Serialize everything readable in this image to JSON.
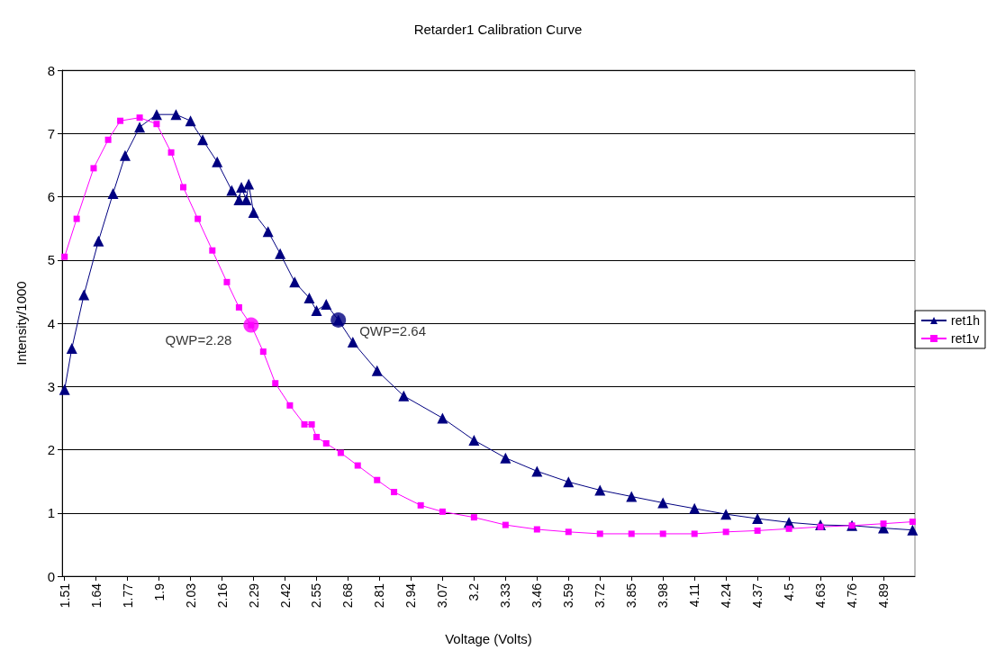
{
  "chart_data": {
    "type": "line",
    "title": "Retarder1 Calibration Curve",
    "xlabel": "Voltage (Volts)",
    "ylabel": "Intensity/1000",
    "xlim": [
      1.5,
      5.02
    ],
    "xticks": [
      1.51,
      1.64,
      1.77,
      1.9,
      2.03,
      2.16,
      2.29,
      2.42,
      2.55,
      2.68,
      2.81,
      2.94,
      3.07,
      3.2,
      3.33,
      3.46,
      3.59,
      3.72,
      3.85,
      3.98,
      4.11,
      4.24,
      4.37,
      4.5,
      4.63,
      4.76,
      4.89
    ],
    "ylim": [
      0,
      8
    ],
    "yticks": [
      0,
      1,
      2,
      3,
      4,
      5,
      6,
      7,
      8
    ],
    "grid": "y",
    "legend": "right",
    "series": [
      {
        "name": "ret1h",
        "color": "#000080",
        "marker": "triangle",
        "x": [
          1.51,
          1.54,
          1.59,
          1.65,
          1.71,
          1.76,
          1.82,
          1.89,
          1.97,
          2.03,
          2.08,
          2.14,
          2.2,
          2.23,
          2.24,
          2.26,
          2.27,
          2.29,
          2.35,
          2.4,
          2.46,
          2.52,
          2.55,
          2.59,
          2.64,
          2.7,
          2.8,
          2.91,
          3.07,
          3.2,
          3.33,
          3.46,
          3.59,
          3.72,
          3.85,
          3.98,
          4.11,
          4.24,
          4.37,
          4.5,
          4.63,
          4.76,
          4.89,
          5.01
        ],
        "values": [
          2.95,
          3.6,
          4.45,
          5.3,
          6.05,
          6.65,
          7.1,
          7.3,
          7.3,
          7.2,
          6.9,
          6.55,
          6.1,
          5.95,
          6.15,
          5.95,
          6.2,
          5.75,
          5.45,
          5.1,
          4.65,
          4.4,
          4.2,
          4.3,
          4.05,
          3.7,
          3.25,
          2.85,
          2.5,
          2.15,
          1.87,
          1.66,
          1.49,
          1.36,
          1.26,
          1.16,
          1.07,
          0.98,
          0.91,
          0.85,
          0.81,
          0.8,
          0.76,
          0.73
        ]
      },
      {
        "name": "ret1v",
        "color": "#ff00ff",
        "marker": "square",
        "x": [
          1.51,
          1.56,
          1.63,
          1.69,
          1.74,
          1.82,
          1.89,
          1.95,
          2.0,
          2.06,
          2.12,
          2.18,
          2.23,
          2.28,
          2.33,
          2.38,
          2.44,
          2.5,
          2.53,
          2.55,
          2.59,
          2.65,
          2.72,
          2.8,
          2.87,
          2.98,
          3.07,
          3.2,
          3.33,
          3.46,
          3.59,
          3.72,
          3.85,
          3.98,
          4.11,
          4.24,
          4.37,
          4.5,
          4.63,
          4.76,
          4.89,
          5.01
        ],
        "values": [
          5.05,
          5.65,
          6.45,
          6.9,
          7.2,
          7.25,
          7.15,
          6.7,
          6.15,
          5.65,
          5.15,
          4.65,
          4.25,
          3.97,
          3.55,
          3.05,
          2.7,
          2.4,
          2.4,
          2.2,
          2.1,
          1.95,
          1.75,
          1.52,
          1.33,
          1.12,
          1.02,
          0.93,
          0.81,
          0.74,
          0.7,
          0.67,
          0.67,
          0.67,
          0.67,
          0.7,
          0.72,
          0.75,
          0.78,
          0.8,
          0.83,
          0.86
        ]
      }
    ],
    "annotations": [
      {
        "text": "QWP=2.28",
        "x": 2.28,
        "y": 3.97
      },
      {
        "text": "QWP=2.64",
        "x": 2.64,
        "y": 4.05
      }
    ]
  }
}
